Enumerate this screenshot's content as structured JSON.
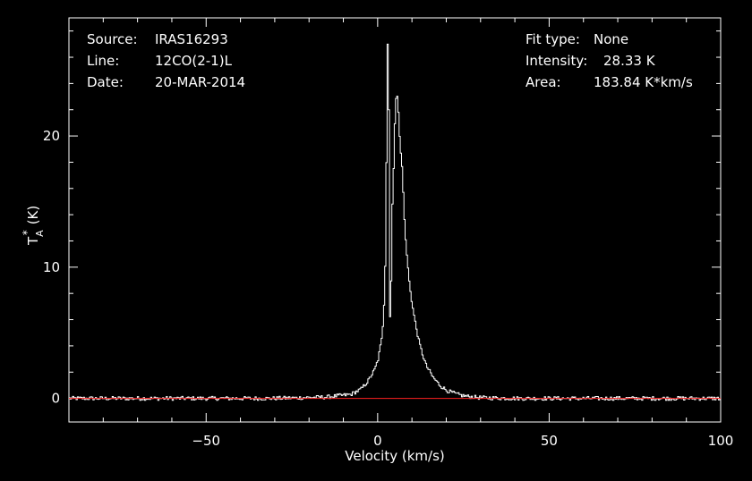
{
  "header_left": {
    "source_label": "Source:",
    "source_value": "IRAS16293",
    "line_label": "Line:",
    "line_value": "12CO(2-1)L",
    "date_label": "Date:",
    "date_value": "20-MAR-2014"
  },
  "header_right": {
    "fit_label": "Fit type:",
    "fit_value": "None",
    "intensity_label": "Intensity:",
    "intensity_value": "28.33 K",
    "area_label": "Area:",
    "area_value": "183.84 K*km/s"
  },
  "colors": {
    "background": "#000000",
    "axes": "#ffffff",
    "spectrum": "#ffffff",
    "baseline": "#ff2020"
  },
  "chart_data": {
    "type": "line",
    "xlabel": "Velocity (km/s)",
    "ylabel_main": "T",
    "ylabel_sub": "A",
    "ylabel_sup": "*",
    "ylabel_unit": "(K)",
    "xlim": [
      -90,
      100
    ],
    "ylim": [
      -1.8,
      29
    ],
    "x_ticks": [
      -50,
      0,
      50,
      100
    ],
    "x_tick_labels": [
      "−50",
      "0",
      "50",
      "100"
    ],
    "y_ticks": [
      0,
      10,
      20
    ],
    "y_tick_labels": [
      "0",
      "10",
      "20"
    ],
    "baseline_y": 0,
    "noise_rms": 0.15,
    "series": [
      {
        "x": [
          -90,
          -30,
          -15,
          -8,
          -5,
          -3,
          -1,
          0,
          1,
          1.5,
          2,
          2.4,
          2.8,
          3.1,
          3.3,
          3.5,
          3.8,
          4.0,
          4.2,
          4.5,
          4.8,
          5.1,
          5.5,
          5.8,
          6.1,
          6.5,
          7,
          7.5,
          8,
          8.5,
          9,
          10,
          11,
          12,
          13,
          14,
          16,
          18,
          20,
          23,
          26,
          30,
          40,
          60,
          100
        ],
        "y": [
          0,
          0,
          0.1,
          0.3,
          0.7,
          1.3,
          2.2,
          3.0,
          4.5,
          6.0,
          9.0,
          18.0,
          28.3,
          22.0,
          10.5,
          4.8,
          9.0,
          15.8,
          14.5,
          17.5,
          20.5,
          22.8,
          23.2,
          22.5,
          20.5,
          19.0,
          17.5,
          14.5,
          12.0,
          10.5,
          9.0,
          7.0,
          5.5,
          4.2,
          3.3,
          2.5,
          1.6,
          1.0,
          0.6,
          0.3,
          0.15,
          0.05,
          0,
          0,
          0
        ]
      }
    ]
  }
}
